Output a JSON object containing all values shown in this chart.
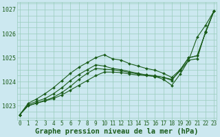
{
  "title": "Graphe pression niveau de la mer (hPa)",
  "bg_color": "#cce8f0",
  "grid_color": "#99ccbb",
  "line_color": "#1a5c1a",
  "ylim": [
    1022.4,
    1027.3
  ],
  "xlim": [
    -0.3,
    23.3
  ],
  "yticks": [
    1023,
    1024,
    1025,
    1026,
    1027
  ],
  "xticks": [
    0,
    1,
    2,
    3,
    4,
    5,
    6,
    7,
    8,
    9,
    10,
    11,
    12,
    13,
    14,
    15,
    16,
    17,
    18,
    19,
    20,
    21,
    22,
    23
  ],
  "series": [
    [
      1022.62,
      1023.0,
      1023.1,
      1023.2,
      1023.3,
      1023.45,
      1023.65,
      1023.85,
      1024.05,
      1024.25,
      1024.4,
      1024.4,
      1024.38,
      1024.32,
      1024.28,
      1024.25,
      1024.22,
      1024.18,
      1024.1,
      1024.45,
      1024.9,
      1025.85,
      1026.35,
      1026.95
    ],
    [
      1022.62,
      1023.0,
      1023.12,
      1023.22,
      1023.35,
      1023.55,
      1023.8,
      1024.1,
      1024.35,
      1024.55,
      1024.52,
      1024.5,
      1024.45,
      1024.38,
      1024.32,
      1024.28,
      1024.22,
      1024.1,
      1023.85,
      1024.32,
      1024.9,
      1024.95,
      1026.1,
      1026.95
    ],
    [
      1022.62,
      1023.05,
      1023.18,
      1023.3,
      1023.5,
      1023.75,
      1024.05,
      1024.3,
      1024.5,
      1024.7,
      1024.65,
      1024.55,
      1024.5,
      1024.42,
      1024.35,
      1024.28,
      1024.25,
      1024.18,
      1024.05,
      1024.5,
      1025.0,
      1025.08,
      1026.05,
      1026.95
    ],
    [
      1022.62,
      1023.1,
      1023.28,
      1023.5,
      1023.75,
      1024.05,
      1024.35,
      1024.6,
      1024.8,
      1025.0,
      1025.12,
      1024.95,
      1024.9,
      1024.75,
      1024.65,
      1024.55,
      1024.48,
      1024.35,
      1024.18,
      1024.5,
      1025.0,
      1025.08,
      1026.05,
      1026.95
    ]
  ],
  "markersize": 2.0,
  "linewidth": 0.8,
  "title_fontsize": 7.5,
  "tick_fontsize": 5.5
}
